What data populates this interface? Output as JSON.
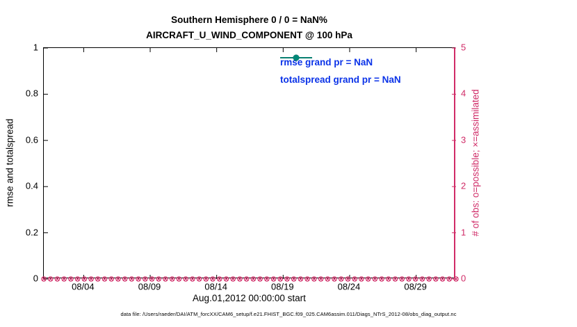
{
  "chart_data": {
    "type": "line",
    "title_line1": "Southern Hemisphere 0 / 0 = NaN%",
    "title_line2": "AIRCRAFT_U_WIND_COMPONENT @ 100 hPa",
    "xlabel": "Aug.01,2012 00:00:00 start",
    "ylabel_left": "rmse and totalspread",
    "ylabel_right": "# of obs: o=possible; ×=assimilated",
    "x_days_total": 31,
    "xticks": [
      {
        "label": "08/04",
        "day": 3
      },
      {
        "label": "08/09",
        "day": 8
      },
      {
        "label": "08/14",
        "day": 13
      },
      {
        "label": "08/19",
        "day": 18
      },
      {
        "label": "08/24",
        "day": 23
      },
      {
        "label": "08/29",
        "day": 28
      }
    ],
    "ylim_left": [
      0,
      1
    ],
    "yticks_left": [
      "0",
      "0.2",
      "0.4",
      "0.6",
      "0.8",
      "1"
    ],
    "ylim_right": [
      0,
      5
    ],
    "yticks_right": [
      "0",
      "1",
      "2",
      "3",
      "4",
      "5"
    ],
    "series": [
      {
        "name": "rmse",
        "grand_prior": "NaN",
        "values": null,
        "note": "all NaN - no line plotted"
      },
      {
        "name": "totalspread",
        "grand_prior": "NaN",
        "values": null,
        "note": "all NaN - no line plotted"
      }
    ],
    "obs_markers": {
      "possible_symbol": "o",
      "assimilated_symbol": "×",
      "count": 62,
      "possible_value": 0,
      "assimilated_value": 0
    },
    "legend": [
      {
        "label": "rmse grand pr = NaN",
        "color": "#000000"
      },
      {
        "label": "totalspread grand pr = NaN",
        "color": "#008878"
      }
    ],
    "colors": {
      "axis_right": "#d02b67",
      "obs_markers": "#d02b67",
      "rmse": "#000000",
      "totalspread": "#008878",
      "legend_text": "#0b33e8"
    },
    "grid": false,
    "legend_position": "top-right-inside"
  },
  "footer": {
    "text": "data file: /Users/raeder/DAI/ATM_forcXX/CAM6_setup/f.e21.FHIST_BGC.f09_025.CAM6assim.011/Diags_NTrS_2012-08/obs_diag_output.nc"
  }
}
